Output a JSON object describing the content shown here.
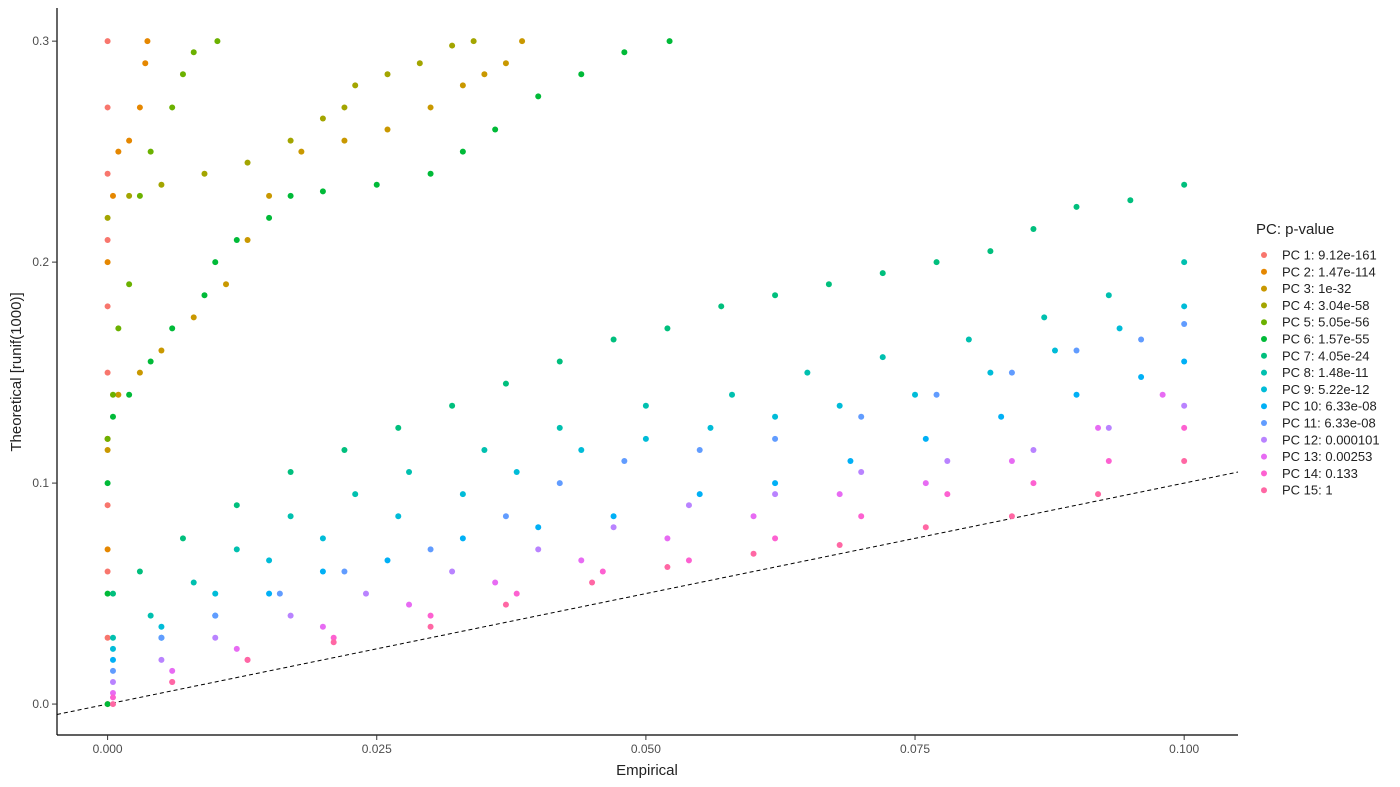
{
  "chart_data": {
    "type": "scatter",
    "x_label": "Empirical",
    "y_label": "Theoretical [runif(1000)]",
    "legend_title": "PC: p-value",
    "legend_position": "right",
    "diagonal": true,
    "xlim": [
      -0.0047,
      0.105
    ],
    "ylim": [
      -0.014,
      0.315
    ],
    "xticks": [
      {
        "value": 0,
        "label": "0.000"
      },
      {
        "value": 0.025,
        "label": "0.025"
      },
      {
        "value": 0.05,
        "label": "0.050"
      },
      {
        "value": 0.075,
        "label": "0.075"
      },
      {
        "value": 0.1,
        "label": "0.100"
      }
    ],
    "yticks": [
      {
        "value": 0,
        "label": "0.0"
      },
      {
        "value": 0.1,
        "label": "0.1"
      },
      {
        "value": 0.2,
        "label": "0.2"
      },
      {
        "value": 0.3,
        "label": "0.3"
      }
    ],
    "series": [
      {
        "name": "PC 1: 9.12e-161",
        "color": "#F8766D",
        "x": [
          0,
          0,
          0,
          0,
          0,
          0,
          0,
          0,
          0,
          0,
          0
        ],
        "values": [
          0,
          0.03,
          0.06,
          0.09,
          0.12,
          0.15,
          0.18,
          0.21,
          0.24,
          0.27,
          0.3
        ]
      },
      {
        "name": "PC 2: 1.47e-114",
        "color": "#E58700",
        "x": [
          0,
          0,
          0,
          0.0005,
          0.001,
          0.002,
          0.003,
          0.0035,
          0.0037
        ],
        "values": [
          0.07,
          0.12,
          0.2,
          0.23,
          0.25,
          0.255,
          0.27,
          0.29,
          0.3
        ]
      },
      {
        "name": "PC 3: 1e-32",
        "color": "#C99800",
        "x": [
          0,
          0.001,
          0.003,
          0.005,
          0.008,
          0.011,
          0.013,
          0.015,
          0.018,
          0.022,
          0.026,
          0.03,
          0.033,
          0.035,
          0.037,
          0.0385
        ],
        "values": [
          0.115,
          0.14,
          0.15,
          0.16,
          0.175,
          0.19,
          0.21,
          0.23,
          0.25,
          0.255,
          0.26,
          0.27,
          0.28,
          0.285,
          0.29,
          0.3
        ]
      },
      {
        "name": "PC 4: 3.04e-58",
        "color": "#A3A500",
        "x": [
          0,
          0.002,
          0.005,
          0.009,
          0.013,
          0.017,
          0.02,
          0.022,
          0.023,
          0.026,
          0.029,
          0.032,
          0.034
        ],
        "values": [
          0.22,
          0.23,
          0.235,
          0.24,
          0.245,
          0.255,
          0.265,
          0.27,
          0.28,
          0.285,
          0.29,
          0.298,
          0.3
        ]
      },
      {
        "name": "PC 5: 5.05e-56",
        "color": "#6BB100",
        "x": [
          0,
          0.0005,
          0.001,
          0.002,
          0.003,
          0.004,
          0.006,
          0.007,
          0.008,
          0.0102
        ],
        "values": [
          0.12,
          0.14,
          0.17,
          0.19,
          0.23,
          0.25,
          0.27,
          0.285,
          0.295,
          0.3
        ]
      },
      {
        "name": "PC 6: 1.57e-55",
        "color": "#00BA38",
        "x": [
          0,
          0,
          0,
          0.0005,
          0.002,
          0.004,
          0.006,
          0.009,
          0.01,
          0.012,
          0.015,
          0.017,
          0.02,
          0.025,
          0.03,
          0.033,
          0.036,
          0.04,
          0.044,
          0.048,
          0.0522
        ],
        "values": [
          0,
          0.05,
          0.1,
          0.13,
          0.14,
          0.155,
          0.17,
          0.185,
          0.2,
          0.21,
          0.22,
          0.23,
          0.232,
          0.235,
          0.24,
          0.25,
          0.26,
          0.275,
          0.285,
          0.295,
          0.3
        ]
      },
      {
        "name": "PC 7: 4.05e-24",
        "color": "#00BF7D",
        "x": [
          0.0005,
          0.003,
          0.007,
          0.012,
          0.017,
          0.022,
          0.027,
          0.032,
          0.037,
          0.042,
          0.047,
          0.052,
          0.057,
          0.062,
          0.067,
          0.072,
          0.077,
          0.082,
          0.086,
          0.09,
          0.095,
          0.1
        ],
        "values": [
          0.05,
          0.06,
          0.075,
          0.09,
          0.105,
          0.115,
          0.125,
          0.135,
          0.145,
          0.155,
          0.165,
          0.17,
          0.18,
          0.185,
          0.19,
          0.195,
          0.2,
          0.205,
          0.215,
          0.225,
          0.228,
          0.235
        ]
      },
      {
        "name": "PC 8: 1.48e-11",
        "color": "#00C0AF",
        "x": [
          0.0005,
          0.004,
          0.008,
          0.012,
          0.017,
          0.023,
          0.028,
          0.035,
          0.042,
          0.05,
          0.058,
          0.065,
          0.072,
          0.08,
          0.087,
          0.093,
          0.1
        ],
        "values": [
          0.03,
          0.04,
          0.055,
          0.07,
          0.085,
          0.095,
          0.105,
          0.115,
          0.125,
          0.135,
          0.14,
          0.15,
          0.157,
          0.165,
          0.175,
          0.185,
          0.2
        ]
      },
      {
        "name": "PC 9: 5.22e-12",
        "color": "#00BCD8",
        "x": [
          0.0005,
          0.005,
          0.01,
          0.015,
          0.02,
          0.027,
          0.033,
          0.038,
          0.044,
          0.05,
          0.056,
          0.062,
          0.068,
          0.075,
          0.082,
          0.088,
          0.094,
          0.1
        ],
        "values": [
          0.025,
          0.035,
          0.05,
          0.065,
          0.075,
          0.085,
          0.095,
          0.105,
          0.115,
          0.12,
          0.125,
          0.13,
          0.135,
          0.14,
          0.15,
          0.16,
          0.17,
          0.18
        ]
      },
      {
        "name": "PC 10: 6.33e-08",
        "color": "#00B0F6",
        "x": [
          0.0005,
          0.005,
          0.01,
          0.015,
          0.02,
          0.026,
          0.033,
          0.04,
          0.047,
          0.055,
          0.062,
          0.069,
          0.076,
          0.083,
          0.09,
          0.096,
          0.1
        ],
        "values": [
          0.02,
          0.03,
          0.04,
          0.05,
          0.06,
          0.065,
          0.075,
          0.08,
          0.085,
          0.095,
          0.1,
          0.11,
          0.12,
          0.13,
          0.14,
          0.148,
          0.155
        ]
      },
      {
        "name": "PC 11: 6.33e-08",
        "color": "#619CFF",
        "x": [
          0.0005,
          0.005,
          0.01,
          0.016,
          0.022,
          0.03,
          0.037,
          0.042,
          0.048,
          0.055,
          0.062,
          0.07,
          0.077,
          0.084,
          0.09,
          0.096,
          0.1
        ],
        "values": [
          0.015,
          0.03,
          0.04,
          0.05,
          0.06,
          0.07,
          0.085,
          0.1,
          0.11,
          0.115,
          0.12,
          0.13,
          0.14,
          0.15,
          0.16,
          0.165,
          0.172
        ]
      },
      {
        "name": "PC 12: 0.000101",
        "color": "#B983FF",
        "x": [
          0.0005,
          0.005,
          0.01,
          0.017,
          0.024,
          0.032,
          0.04,
          0.047,
          0.054,
          0.062,
          0.07,
          0.078,
          0.086,
          0.093,
          0.1
        ],
        "values": [
          0.01,
          0.02,
          0.03,
          0.04,
          0.05,
          0.06,
          0.07,
          0.08,
          0.09,
          0.095,
          0.105,
          0.11,
          0.115,
          0.125,
          0.135
        ]
      },
      {
        "name": "PC 13: 0.00253",
        "color": "#E76BF3",
        "x": [
          0.0005,
          0.006,
          0.012,
          0.02,
          0.028,
          0.036,
          0.044,
          0.052,
          0.06,
          0.068,
          0.076,
          0.084,
          0.092,
          0.098
        ],
        "values": [
          0.005,
          0.015,
          0.025,
          0.035,
          0.045,
          0.055,
          0.065,
          0.075,
          0.085,
          0.095,
          0.1,
          0.11,
          0.125,
          0.14
        ]
      },
      {
        "name": "PC 14: 0.133",
        "color": "#FD61D1",
        "x": [
          0.0005,
          0.006,
          0.013,
          0.021,
          0.03,
          0.038,
          0.046,
          0.054,
          0.062,
          0.07,
          0.078,
          0.086,
          0.093,
          0.1
        ],
        "values": [
          0.003,
          0.01,
          0.02,
          0.03,
          0.04,
          0.05,
          0.06,
          0.065,
          0.075,
          0.085,
          0.095,
          0.1,
          0.11,
          0.125
        ]
      },
      {
        "name": "PC 15: 1",
        "color": "#FF67A4",
        "x": [
          0.0005,
          0.006,
          0.013,
          0.021,
          0.03,
          0.037,
          0.045,
          0.052,
          0.06,
          0.068,
          0.076,
          0.084,
          0.092,
          0.1
        ],
        "values": [
          0,
          0.01,
          0.02,
          0.028,
          0.035,
          0.045,
          0.055,
          0.062,
          0.068,
          0.072,
          0.08,
          0.085,
          0.095,
          0.11
        ]
      }
    ]
  }
}
